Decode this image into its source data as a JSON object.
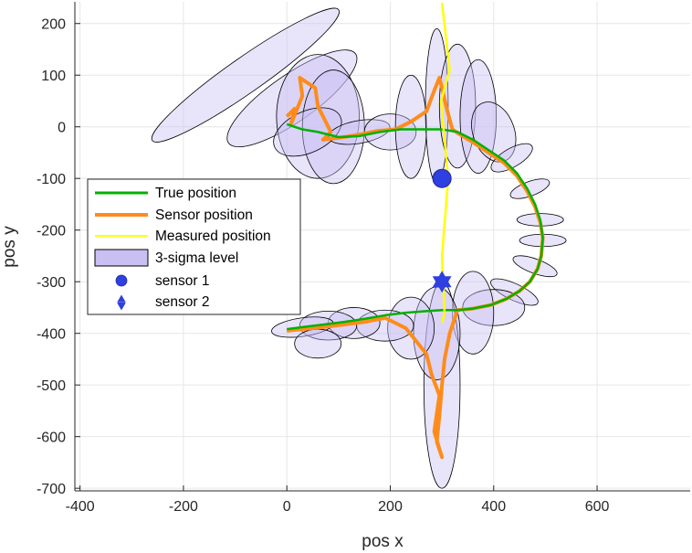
{
  "chart_data": {
    "type": "scatter",
    "title": "",
    "xlabel": "pos x",
    "ylabel": "pos y",
    "xlim": [
      -410,
      780
    ],
    "ylim": [
      -705,
      242
    ],
    "xticks": [
      -400,
      -200,
      0,
      200,
      400,
      600
    ],
    "yticks": [
      200,
      100,
      0,
      -100,
      -200,
      -300,
      -400,
      -500,
      -600,
      -700
    ],
    "grid": true,
    "legend_position": "middle-left",
    "colors": {
      "true_position": "#00b000",
      "sensor_position": "#ff8c1a",
      "measured_position": "#ffff00",
      "sigma_fill": "#c9bff2",
      "sigma_edge": "#000000",
      "sensor_marker": "#2f3fe0",
      "axis": "#262626",
      "grid": "#e6e6e6"
    },
    "series": [
      {
        "name": "True position",
        "x": [
          0,
          30,
          60,
          100,
          140,
          180,
          220,
          260,
          300,
          330,
          360,
          390,
          420,
          445,
          465,
          480,
          490,
          495,
          492,
          485,
          470,
          450,
          425,
          395,
          360,
          330,
          300,
          270,
          230,
          190,
          150,
          110,
          70,
          30,
          0
        ],
        "y": [
          5,
          -5,
          -10,
          -20,
          -18,
          -10,
          -5,
          -5,
          -5,
          -10,
          -25,
          -45,
          -65,
          -90,
          -120,
          -150,
          -180,
          -215,
          -250,
          -275,
          -300,
          -318,
          -333,
          -345,
          -352,
          -355,
          -355,
          -357,
          -360,
          -365,
          -372,
          -378,
          -383,
          -388,
          -392
        ]
      },
      {
        "name": "Sensor position",
        "x": [
          0,
          15,
          8,
          30,
          25,
          55,
          60,
          85,
          70,
          110,
          140,
          175,
          210,
          240,
          270,
          285,
          295,
          300,
          308,
          320,
          335,
          360,
          390,
          420,
          445,
          465,
          480,
          490,
          495,
          492,
          485,
          470,
          450,
          425,
          395,
          360,
          330,
          315,
          305,
          300,
          295,
          290,
          300,
          285,
          295,
          280,
          270,
          230,
          190,
          150,
          110,
          70,
          30,
          0
        ],
        "y": [
          20,
          35,
          5,
          60,
          95,
          75,
          40,
          -10,
          -25,
          -20,
          -15,
          -8,
          -5,
          10,
          30,
          70,
          95,
          75,
          40,
          -5,
          -15,
          -30,
          -50,
          -70,
          -95,
          -125,
          -155,
          -185,
          -215,
          -250,
          -275,
          -300,
          -318,
          -333,
          -345,
          -352,
          -355,
          -400,
          -450,
          -500,
          -560,
          -610,
          -640,
          -590,
          -520,
          -480,
          -440,
          -390,
          -370,
          -378,
          -383,
          -388,
          -392,
          -395
        ]
      },
      {
        "name": "Measured position",
        "x": [
          300,
          315,
          298,
          312,
          300,
          305,
          300
        ],
        "y": [
          240,
          110,
          50,
          -100,
          -250,
          -360,
          -380
        ]
      },
      {
        "name": "3-sigma level",
        "ellipses": [
          {
            "cx": -80,
            "cy": 100,
            "rx": 220,
            "ry": 34,
            "angle": 35
          },
          {
            "cx": 10,
            "cy": 55,
            "rx": 150,
            "ry": 45,
            "angle": 35
          },
          {
            "cx": 60,
            "cy": 20,
            "rx": 80,
            "ry": 120,
            "angle": 0
          },
          {
            "cx": 90,
            "cy": 0,
            "rx": 60,
            "ry": 110,
            "angle": 0
          },
          {
            "cx": 40,
            "cy": -10,
            "rx": 70,
            "ry": 40,
            "angle": 25
          },
          {
            "cx": 140,
            "cy": -10,
            "rx": 60,
            "ry": 22,
            "angle": 10
          },
          {
            "cx": 200,
            "cy": -10,
            "rx": 50,
            "ry": 35,
            "angle": 0
          },
          {
            "cx": 240,
            "cy": 0,
            "rx": 30,
            "ry": 100,
            "angle": 0
          },
          {
            "cx": 290,
            "cy": 40,
            "rx": 22,
            "ry": 150,
            "angle": 0
          },
          {
            "cx": 330,
            "cy": 40,
            "rx": 35,
            "ry": 120,
            "angle": 0
          },
          {
            "cx": 370,
            "cy": 20,
            "rx": 35,
            "ry": 110,
            "angle": 0
          },
          {
            "cx": 400,
            "cy": -10,
            "rx": 40,
            "ry": 60,
            "angle": 20
          },
          {
            "cx": 435,
            "cy": -60,
            "rx": 45,
            "ry": 18,
            "angle": 30
          },
          {
            "cx": 470,
            "cy": -120,
            "rx": 40,
            "ry": 14,
            "angle": 20
          },
          {
            "cx": 490,
            "cy": -180,
            "rx": 45,
            "ry": 12,
            "angle": 0
          },
          {
            "cx": 495,
            "cy": -220,
            "rx": 45,
            "ry": 12,
            "angle": 0
          },
          {
            "cx": 480,
            "cy": -270,
            "rx": 45,
            "ry": 14,
            "angle": -20
          },
          {
            "cx": 440,
            "cy": -320,
            "rx": 50,
            "ry": 16,
            "angle": -25
          },
          {
            "cx": 400,
            "cy": -350,
            "rx": 60,
            "ry": 35,
            "angle": 0
          },
          {
            "cx": 360,
            "cy": -360,
            "rx": 40,
            "ry": 80,
            "angle": 0
          },
          {
            "cx": 300,
            "cy": -500,
            "rx": 35,
            "ry": 200,
            "angle": 0
          },
          {
            "cx": 290,
            "cy": -400,
            "rx": 45,
            "ry": 90,
            "angle": 0
          },
          {
            "cx": 240,
            "cy": -390,
            "rx": 45,
            "ry": 60,
            "angle": 0
          },
          {
            "cx": 190,
            "cy": -385,
            "rx": 55,
            "ry": 30,
            "angle": 0
          },
          {
            "cx": 130,
            "cy": -380,
            "rx": 50,
            "ry": 30,
            "angle": 0
          },
          {
            "cx": 80,
            "cy": -385,
            "rx": 55,
            "ry": 28,
            "angle": 0
          },
          {
            "cx": 30,
            "cy": -388,
            "rx": 60,
            "ry": 18,
            "angle": 8
          },
          {
            "cx": 60,
            "cy": -420,
            "rx": 45,
            "ry": 28,
            "angle": 0
          }
        ]
      },
      {
        "name": "sensor 1",
        "marker": "circle",
        "points": [
          [
            300,
            -100
          ]
        ]
      },
      {
        "name": "sensor 2",
        "marker": "hexagram",
        "points": [
          [
            300,
            -300
          ]
        ]
      }
    ],
    "legend": [
      "True position",
      "Sensor position",
      "Measured position",
      "3-sigma level",
      "sensor 1",
      "sensor 2"
    ]
  }
}
